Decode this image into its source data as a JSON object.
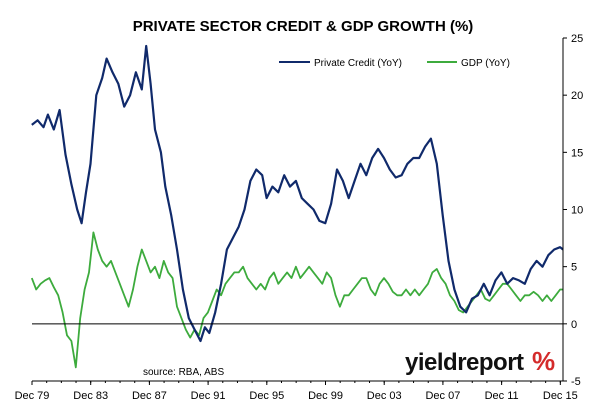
{
  "chart_data": {
    "type": "line",
    "title": "PRIVATE SECTOR CREDIT & GDP GROWTH (%)",
    "xlabel": "",
    "ylabel": "",
    "x_tick_labels": [
      "Dec 79",
      "Dec 83",
      "Dec 87",
      "Dec 91",
      "Dec 95",
      "Dec 99",
      "Dec 03",
      "Dec 07",
      "Dec 11",
      "Dec 15"
    ],
    "x_tick_years": [
      1979.917,
      1983.917,
      1987.917,
      1991.917,
      1995.917,
      1999.917,
      2003.917,
      2007.917,
      2011.917,
      2015.917
    ],
    "xlim": [
      1979.917,
      2016.1
    ],
    "y_ticks": [
      -5,
      0,
      5,
      10,
      15,
      20,
      25
    ],
    "ylim": [
      -5,
      25
    ],
    "y_axis_position": "right",
    "grid": false,
    "legend_position": "top-right",
    "source": "source: RBA, ABS",
    "brand": {
      "text": "yieldreport",
      "symbol": "%"
    },
    "colors": {
      "credit": "#102a6b",
      "gdp": "#3dab3d",
      "brand_accent": "#d42b2b"
    },
    "series": [
      {
        "name": "Private Credit (YoY)",
        "color": "#102a6b",
        "x": [
          1979.9,
          1980.3,
          1980.7,
          1981.0,
          1981.4,
          1981.8,
          1982.2,
          1982.6,
          1983.0,
          1983.3,
          1983.6,
          1983.9,
          1984.3,
          1984.7,
          1985.0,
          1985.4,
          1985.8,
          1986.2,
          1986.6,
          1987.0,
          1987.4,
          1987.7,
          1988.0,
          1988.3,
          1988.7,
          1989.0,
          1989.4,
          1989.8,
          1990.2,
          1990.6,
          1991.0,
          1991.4,
          1991.7,
          1992.0,
          1992.4,
          1992.8,
          1993.2,
          1993.6,
          1994.0,
          1994.4,
          1994.8,
          1995.2,
          1995.6,
          1995.9,
          1996.3,
          1996.7,
          1997.1,
          1997.5,
          1997.9,
          1998.3,
          1998.7,
          1999.1,
          1999.5,
          1999.9,
          2000.3,
          2000.7,
          2001.1,
          2001.5,
          2001.9,
          2002.3,
          2002.7,
          2003.1,
          2003.5,
          2003.9,
          2004.3,
          2004.7,
          2005.1,
          2005.5,
          2005.9,
          2006.3,
          2006.7,
          2007.1,
          2007.5,
          2007.9,
          2008.3,
          2008.7,
          2009.1,
          2009.5,
          2009.9,
          2010.3,
          2010.7,
          2011.1,
          2011.5,
          2011.9,
          2012.3,
          2012.7,
          2013.1,
          2013.5,
          2013.9,
          2014.3,
          2014.7,
          2015.1,
          2015.5,
          2015.9,
          2016.1
        ],
        "values": [
          17.4,
          17.8,
          17.2,
          18.3,
          17.0,
          18.7,
          14.8,
          12.2,
          10.0,
          8.8,
          11.5,
          14.0,
          20.0,
          21.5,
          23.2,
          22.0,
          21.0,
          19.0,
          20.0,
          22.0,
          20.5,
          24.3,
          21.0,
          17.0,
          15.0,
          12.0,
          9.5,
          6.5,
          3.0,
          0.5,
          -0.5,
          -1.5,
          -0.3,
          -0.8,
          1.0,
          3.5,
          6.5,
          7.5,
          8.5,
          10.0,
          12.5,
          13.5,
          13.0,
          11.0,
          12.0,
          11.5,
          13.0,
          12.0,
          12.5,
          11.0,
          10.5,
          10.0,
          9.0,
          8.8,
          10.5,
          13.5,
          12.5,
          11.0,
          12.5,
          14.0,
          13.0,
          14.5,
          15.3,
          14.5,
          13.5,
          12.8,
          13.0,
          14.0,
          14.5,
          14.5,
          15.5,
          16.2,
          14.0,
          9.5,
          5.5,
          3.0,
          1.5,
          1.0,
          2.2,
          2.5,
          3.5,
          2.5,
          3.8,
          4.5,
          3.5,
          4.0,
          3.8,
          3.5,
          4.8,
          5.5,
          5.0,
          6.0,
          6.5,
          6.7,
          6.5
        ]
      },
      {
        "name": "GDP (YoY)",
        "color": "#3dab3d",
        "x": [
          1979.9,
          1980.2,
          1980.5,
          1980.8,
          1981.1,
          1981.4,
          1981.7,
          1982.0,
          1982.3,
          1982.6,
          1982.9,
          1983.2,
          1983.5,
          1983.8,
          1984.1,
          1984.4,
          1984.7,
          1985.0,
          1985.3,
          1985.6,
          1985.9,
          1986.2,
          1986.5,
          1986.8,
          1987.1,
          1987.4,
          1987.7,
          1988.0,
          1988.3,
          1988.6,
          1988.9,
          1989.2,
          1989.5,
          1989.8,
          1990.1,
          1990.4,
          1990.7,
          1991.0,
          1991.3,
          1991.6,
          1991.9,
          1992.2,
          1992.5,
          1992.8,
          1993.1,
          1993.4,
          1993.7,
          1994.0,
          1994.3,
          1994.6,
          1994.9,
          1995.2,
          1995.5,
          1995.8,
          1996.1,
          1996.4,
          1996.7,
          1997.0,
          1997.3,
          1997.6,
          1997.9,
          1998.2,
          1998.5,
          1998.8,
          1999.1,
          1999.4,
          1999.7,
          2000.0,
          2000.3,
          2000.6,
          2000.9,
          2001.2,
          2001.5,
          2001.8,
          2002.1,
          2002.4,
          2002.7,
          2003.0,
          2003.3,
          2003.6,
          2003.9,
          2004.2,
          2004.5,
          2004.8,
          2005.1,
          2005.4,
          2005.7,
          2006.0,
          2006.3,
          2006.6,
          2006.9,
          2007.2,
          2007.5,
          2007.8,
          2008.1,
          2008.4,
          2008.7,
          2009.0,
          2009.3,
          2009.6,
          2009.9,
          2010.2,
          2010.5,
          2010.8,
          2011.1,
          2011.4,
          2011.7,
          2012.0,
          2012.3,
          2012.6,
          2012.9,
          2013.2,
          2013.5,
          2013.8,
          2014.1,
          2014.4,
          2014.7,
          2015.0,
          2015.3,
          2015.6,
          2015.9,
          2016.1
        ],
        "values": [
          4.0,
          3.0,
          3.5,
          3.8,
          4.0,
          3.2,
          2.5,
          1.0,
          -1.0,
          -1.5,
          -3.8,
          0.5,
          3.0,
          4.5,
          8.0,
          6.5,
          5.5,
          5.0,
          5.5,
          4.5,
          3.5,
          2.5,
          1.5,
          3.0,
          5.0,
          6.5,
          5.5,
          4.5,
          5.0,
          4.0,
          5.5,
          4.5,
          4.0,
          1.5,
          0.5,
          -0.5,
          -1.2,
          -0.5,
          -1.0,
          0.5,
          1.0,
          2.0,
          3.0,
          2.5,
          3.5,
          4.0,
          4.5,
          4.5,
          5.0,
          4.0,
          3.5,
          3.0,
          3.5,
          3.0,
          4.0,
          4.5,
          3.5,
          4.0,
          4.5,
          4.0,
          5.0,
          4.0,
          4.5,
          5.0,
          4.5,
          4.0,
          3.5,
          4.5,
          4.0,
          2.5,
          1.5,
          2.5,
          2.5,
          3.0,
          3.5,
          4.0,
          4.0,
          3.0,
          2.5,
          3.5,
          4.0,
          3.5,
          2.8,
          2.5,
          2.5,
          3.0,
          2.5,
          3.0,
          2.5,
          3.0,
          3.5,
          4.5,
          4.8,
          4.0,
          3.5,
          2.5,
          2.0,
          1.2,
          1.0,
          1.5,
          2.0,
          2.5,
          3.0,
          2.2,
          2.0,
          2.5,
          3.0,
          3.5,
          3.5,
          3.0,
          2.5,
          2.0,
          2.5,
          2.5,
          2.8,
          2.5,
          2.0,
          2.5,
          2.0,
          2.5,
          3.0,
          3.0
        ]
      }
    ]
  }
}
